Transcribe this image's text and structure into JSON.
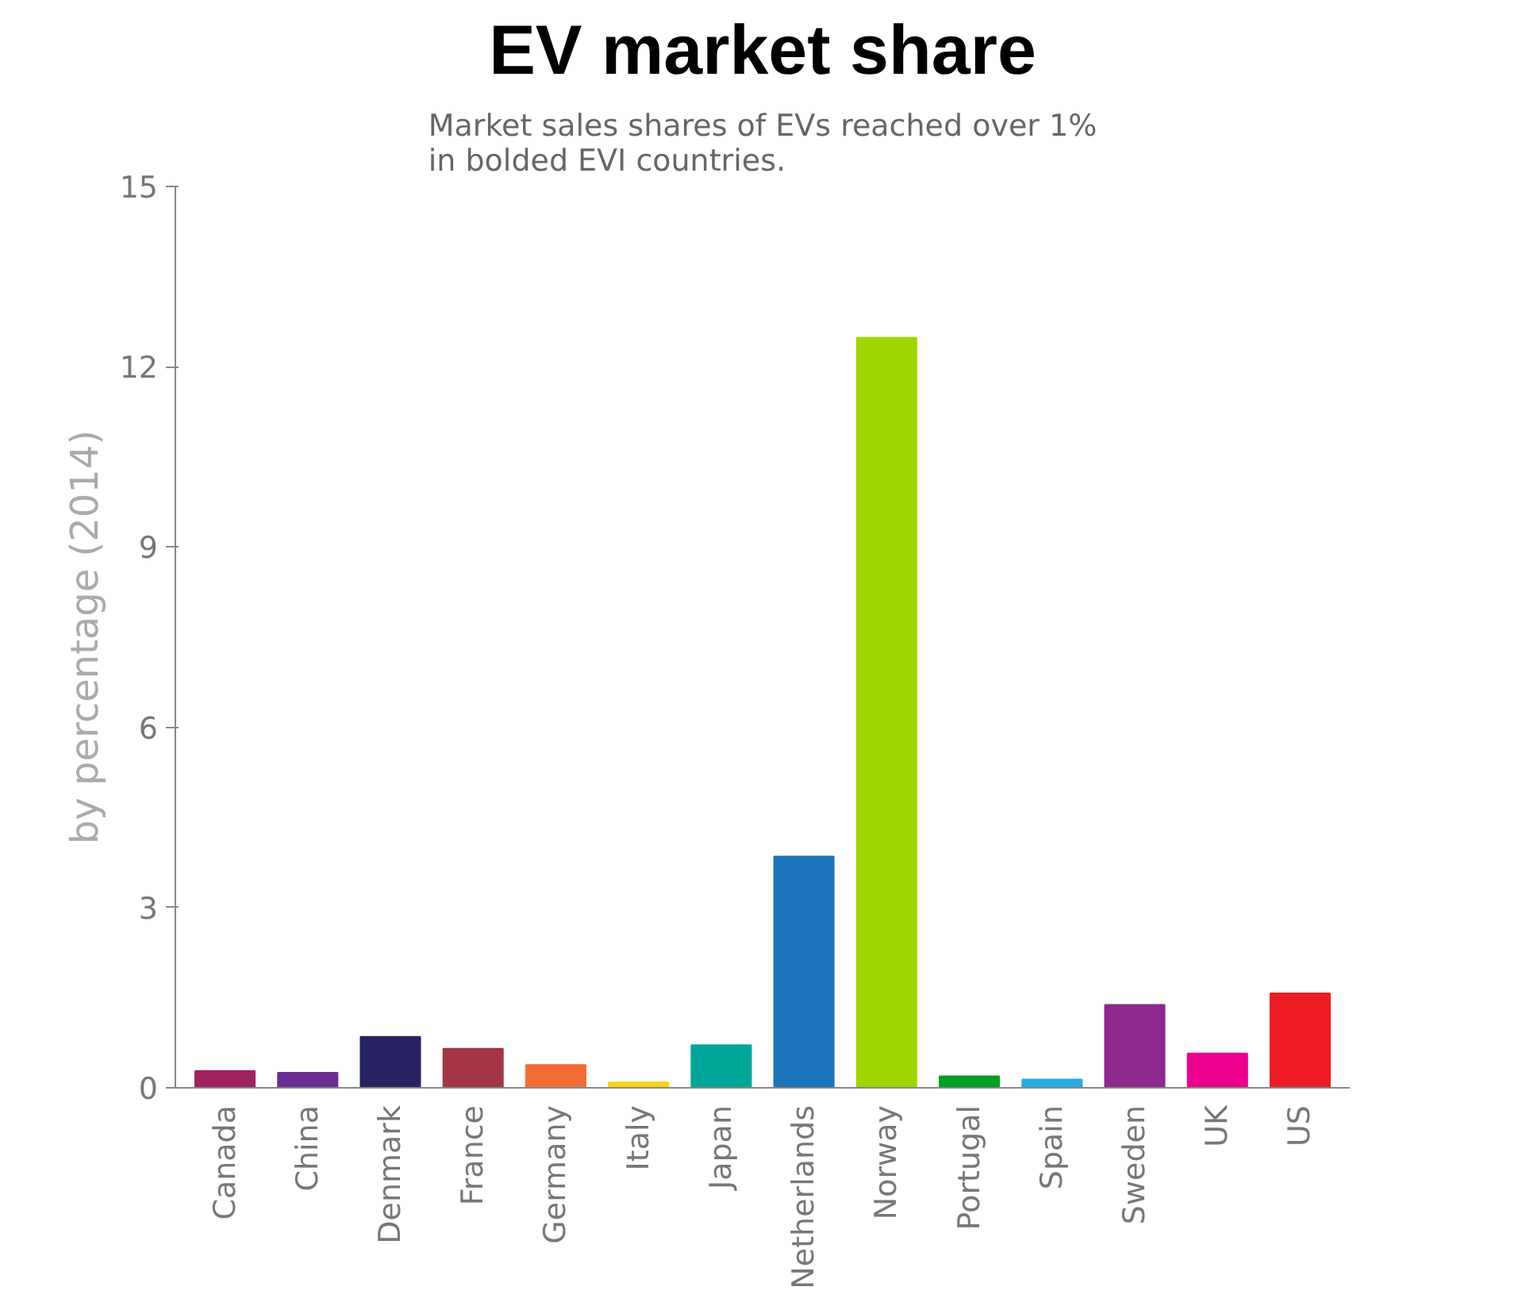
{
  "chart_data": {
    "type": "bar",
    "title": "EV market share",
    "subtitle": "Market sales shares of EVs reached over 1%\nin bolded EVI countries.",
    "ylabel": "by percentage (2014)",
    "categories": [
      "Canada",
      "China",
      "Denmark",
      "France",
      "Germany",
      "Italy",
      "Japan",
      "Netherlands",
      "Norway",
      "Portugal",
      "Spain",
      "Sweden",
      "UK",
      "US"
    ],
    "values": [
      0.28,
      0.25,
      0.85,
      0.65,
      0.38,
      0.09,
      0.71,
      3.85,
      12.48,
      0.19,
      0.14,
      1.38,
      0.57,
      1.57
    ],
    "colors": [
      "#a0215f",
      "#6a2e91",
      "#272262",
      "#a33545",
      "#f26d35",
      "#fccf0f",
      "#00a699",
      "#1c75bc",
      "#9fd700",
      "#00a021",
      "#27aae1",
      "#8e278e",
      "#ec008c",
      "#ed1c24"
    ],
    "ylim": [
      0,
      15
    ],
    "yticks": [
      0,
      3,
      6,
      9,
      12,
      15
    ],
    "grid": false
  }
}
